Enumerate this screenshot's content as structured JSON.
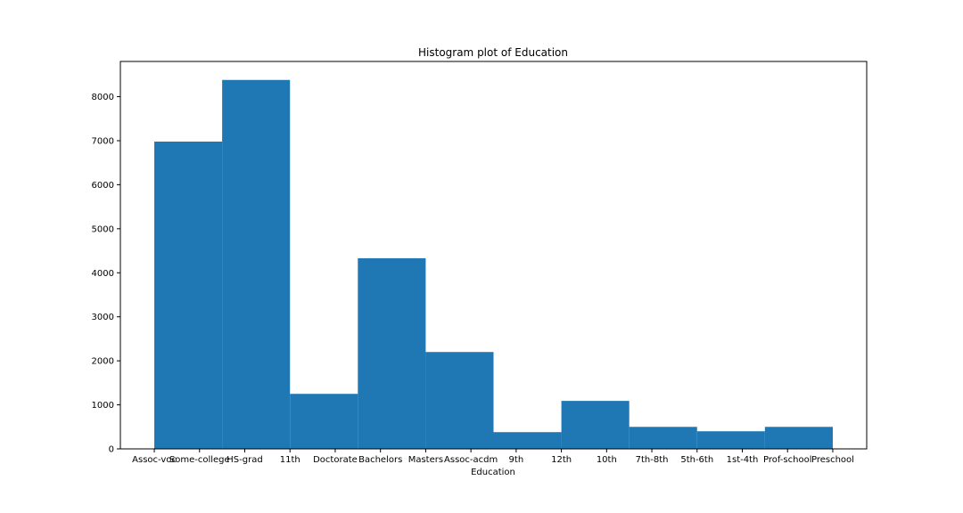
{
  "chart_data": {
    "type": "bar",
    "title": "Histogram plot of Education",
    "xlabel": "Education",
    "ylabel": "",
    "bar_color": "#1f77b4",
    "ylim": [
      0,
      8800
    ],
    "yticks": [
      0,
      1000,
      2000,
      3000,
      4000,
      5000,
      6000,
      7000,
      8000
    ],
    "xticks": [
      "Assoc-voc",
      "Some-college",
      "HS-grad",
      "11th",
      "Doctorate",
      "Bachelors",
      "Masters",
      "Assoc-acdm",
      "9th",
      "12th",
      "10th",
      "7th-8th",
      "5th-6th",
      "1st-4th",
      "Prof-school",
      "Preschool"
    ],
    "bins": [
      {
        "from": 0.0,
        "to": 1.5,
        "value": 6980
      },
      {
        "from": 1.5,
        "to": 3.0,
        "value": 8380
      },
      {
        "from": 3.0,
        "to": 4.5,
        "value": 1250
      },
      {
        "from": 4.5,
        "to": 6.0,
        "value": 4330
      },
      {
        "from": 6.0,
        "to": 7.5,
        "value": 2200
      },
      {
        "from": 7.5,
        "to": 9.0,
        "value": 380
      },
      {
        "from": 9.0,
        "to": 10.5,
        "value": 1090
      },
      {
        "from": 10.5,
        "to": 12.0,
        "value": 500
      },
      {
        "from": 12.0,
        "to": 13.5,
        "value": 400
      },
      {
        "from": 13.5,
        "to": 15.0,
        "value": 500
      }
    ],
    "grid": false,
    "legend": "none"
  }
}
